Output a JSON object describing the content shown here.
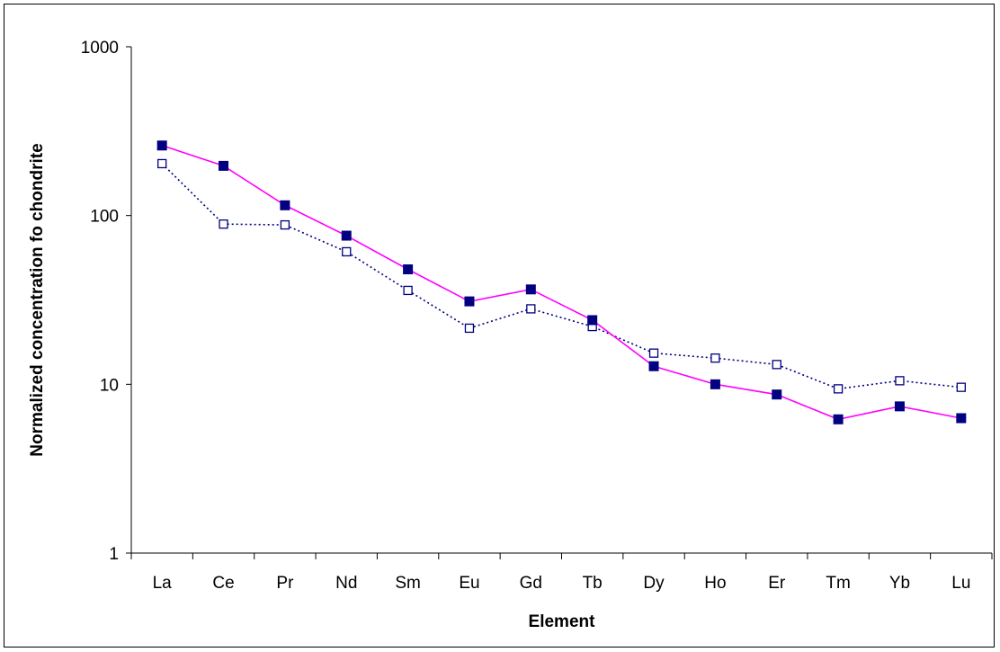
{
  "chart_data": {
    "type": "line",
    "title": "",
    "xlabel": "Element",
    "ylabel": "Normalized concentration fo chondrite",
    "yscale": "log",
    "ylim": [
      1,
      1000
    ],
    "yticks": [
      1,
      10,
      100,
      1000
    ],
    "ytick_labels": [
      "1",
      "10",
      "100",
      "1000"
    ],
    "grid": false,
    "legend": "none",
    "categories": [
      "La",
      "Ce",
      "Pr",
      "Nd",
      "Sm",
      "Eu",
      "Gd",
      "Tb",
      "Dy",
      "Ho",
      "Er",
      "Tm",
      "Yb",
      "Lu"
    ],
    "series": [
      {
        "values": [
          260,
          197,
          115,
          76,
          48,
          31,
          36.5,
          24,
          12.8,
          10,
          8.7,
          6.2,
          7.4,
          6.3
        ],
        "line_color": "#ff00ff",
        "line_style": "solid",
        "marker": "filled-square",
        "marker_color": "#000080"
      },
      {
        "values": [
          203,
          89,
          88,
          61,
          36,
          21.5,
          28,
          22,
          15.3,
          14.3,
          13.1,
          9.4,
          10.5,
          9.6
        ],
        "line_color": "#000080",
        "line_style": "dotted",
        "marker": "open-square",
        "marker_color": "#000080"
      }
    ]
  }
}
